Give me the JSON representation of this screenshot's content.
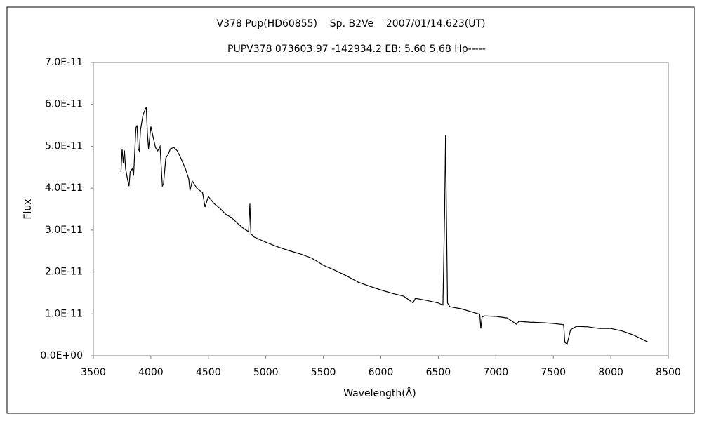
{
  "chart_data": {
    "type": "line",
    "title": "V378 Pup(HD60855)    Sp. B2Ve    2007/01/14.623(UT)",
    "subtitle": "PUPV378 073603.97 -142934.2 EB: 5.60 5.68 Hp-----",
    "xlabel": "Wavelength(Å)",
    "ylabel": "Flux",
    "color": "#000000",
    "grid": false,
    "xlim": [
      3500,
      8500
    ],
    "xticks": [
      3500,
      4000,
      4500,
      5000,
      5500,
      6000,
      6500,
      7000,
      7500,
      8000,
      8500
    ],
    "ylim": [
      0,
      7e-11
    ],
    "yticks": [
      {
        "value": 0,
        "label": "0.0E+00"
      },
      {
        "value": 1e-11,
        "label": "1.0E-11"
      },
      {
        "value": 2e-11,
        "label": "2.0E-11"
      },
      {
        "value": 3e-11,
        "label": "3.0E-11"
      },
      {
        "value": 4e-11,
        "label": "4.0E-11"
      },
      {
        "value": 5e-11,
        "label": "5.0E-11"
      },
      {
        "value": 6e-11,
        "label": "6.0E-11"
      },
      {
        "value": 7e-11,
        "label": "7.0E-11"
      }
    ],
    "x": [
      3740,
      3750,
      3760,
      3770,
      3780,
      3800,
      3810,
      3820,
      3840,
      3850,
      3870,
      3880,
      3890,
      3900,
      3910,
      3930,
      3940,
      3960,
      3970,
      3980,
      4000,
      4020,
      4040,
      4060,
      4080,
      4100,
      4110,
      4130,
      4150,
      4170,
      4200,
      4230,
      4260,
      4300,
      4330,
      4340,
      4360,
      4400,
      4450,
      4471,
      4500,
      4550,
      4600,
      4650,
      4700,
      4750,
      4800,
      4850,
      4861,
      4870,
      4900,
      5000,
      5100,
      5200,
      5300,
      5400,
      5500,
      5600,
      5700,
      5800,
      5900,
      6000,
      6100,
      6200,
      6280,
      6300,
      6400,
      6500,
      6540,
      6555,
      6563,
      6570,
      6580,
      6600,
      6700,
      6800,
      6860,
      6870,
      6880,
      6900,
      7000,
      7100,
      7180,
      7200,
      7300,
      7400,
      7500,
      7590,
      7600,
      7620,
      7650,
      7700,
      7800,
      7900,
      8000,
      8100,
      8200,
      8320
    ],
    "values": [
      4.39e-11,
      4.94e-11,
      4.6e-11,
      4.9e-11,
      4.47e-11,
      4.17e-11,
      4.05e-11,
      4.39e-11,
      4.47e-11,
      4.3e-11,
      5.44e-11,
      5.5e-11,
      4.94e-11,
      4.89e-11,
      5.39e-11,
      5.72e-11,
      5.81e-11,
      5.93e-11,
      5.31e-11,
      4.94e-11,
      5.47e-11,
      5.22e-11,
      4.97e-11,
      4.89e-11,
      5e-11,
      4.05e-11,
      4.1e-11,
      4.72e-11,
      4.8e-11,
      4.94e-11,
      4.97e-11,
      4.89e-11,
      4.72e-11,
      4.47e-11,
      4.22e-11,
      3.94e-11,
      4.17e-11,
      4e-11,
      3.89e-11,
      3.55e-11,
      3.8e-11,
      3.63e-11,
      3.52e-11,
      3.38e-11,
      3.3e-11,
      3.17e-11,
      3.05e-11,
      2.96e-11,
      3.63e-11,
      2.91e-11,
      2.83e-11,
      2.71e-11,
      2.6e-11,
      2.51e-11,
      2.43e-11,
      2.33e-11,
      2.16e-11,
      2.04e-11,
      1.91e-11,
      1.76e-11,
      1.66e-11,
      1.57e-11,
      1.49e-11,
      1.42e-11,
      1.26e-11,
      1.37e-11,
      1.32e-11,
      1.26e-11,
      1.21e-11,
      3.47e-11,
      5.26e-11,
      3.47e-11,
      1.26e-11,
      1.17e-11,
      1.12e-11,
      1.04e-11,
      9.9e-12,
      6.5e-12,
      9.2e-12,
      9.5e-12,
      9.4e-12,
      9e-12,
      7.5e-12,
      8.2e-12,
      8e-12,
      7.9e-12,
      7.7e-12,
      7.4e-12,
      3.2e-12,
      2.8e-12,
      6.2e-12,
      7e-12,
      6.9e-12,
      6.5e-12,
      6.5e-12,
      5.9e-12,
      4.9e-12,
      3.3e-12
    ]
  }
}
